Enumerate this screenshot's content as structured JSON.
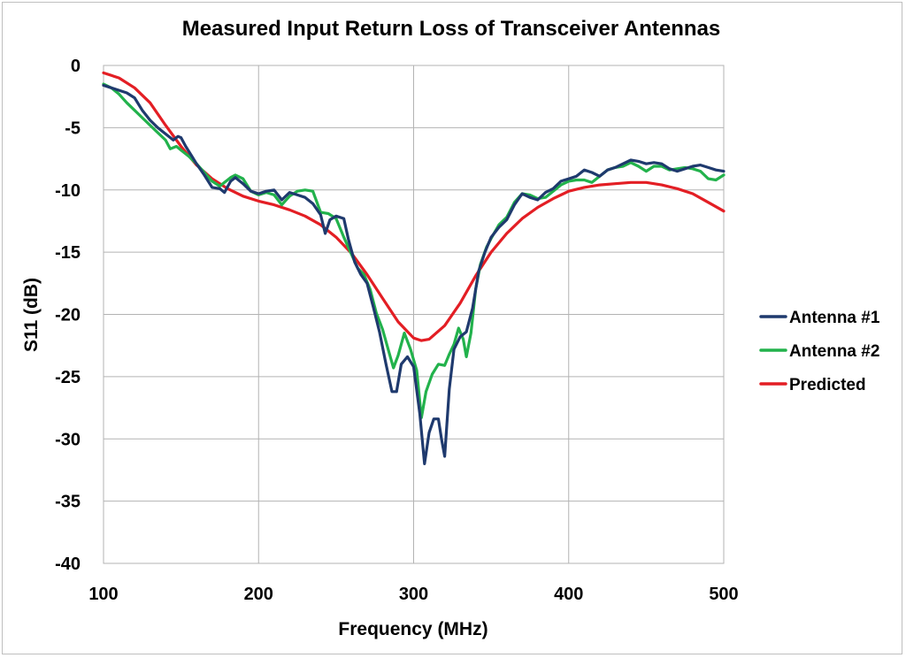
{
  "chart_data": {
    "type": "line",
    "title": "Measured Input Return Loss of Transceiver Antennas",
    "xlabel": "Frequency (MHz)",
    "ylabel": "S11 (dB)",
    "xlim": [
      100,
      500
    ],
    "ylim": [
      -40,
      0
    ],
    "x_ticks": [
      100,
      200,
      300,
      400,
      500
    ],
    "y_ticks": [
      0,
      -5,
      -10,
      -15,
      -20,
      -25,
      -30,
      -35,
      -40
    ],
    "grid": true,
    "legend_position": "right",
    "series": [
      {
        "name": "Antenna #1",
        "color": "#1f3a6e",
        "points": [
          [
            100,
            -1.6
          ],
          [
            105,
            -1.8
          ],
          [
            110,
            -2.0
          ],
          [
            115,
            -2.2
          ],
          [
            120,
            -2.6
          ],
          [
            125,
            -3.6
          ],
          [
            130,
            -4.4
          ],
          [
            135,
            -5.0
          ],
          [
            140,
            -5.5
          ],
          [
            145,
            -6.0
          ],
          [
            148,
            -5.7
          ],
          [
            150,
            -5.8
          ],
          [
            153,
            -6.5
          ],
          [
            157,
            -7.3
          ],
          [
            160,
            -7.9
          ],
          [
            165,
            -8.8
          ],
          [
            170,
            -9.8
          ],
          [
            175,
            -9.9
          ],
          [
            178,
            -10.2
          ],
          [
            182,
            -9.3
          ],
          [
            185,
            -9.0
          ],
          [
            190,
            -9.5
          ],
          [
            195,
            -10.1
          ],
          [
            200,
            -10.3
          ],
          [
            205,
            -10.1
          ],
          [
            210,
            -10.0
          ],
          [
            215,
            -10.8
          ],
          [
            220,
            -10.2
          ],
          [
            225,
            -10.4
          ],
          [
            230,
            -10.6
          ],
          [
            235,
            -11.1
          ],
          [
            240,
            -12.0
          ],
          [
            243,
            -13.5
          ],
          [
            246,
            -12.4
          ],
          [
            250,
            -12.1
          ],
          [
            255,
            -12.3
          ],
          [
            258,
            -14.0
          ],
          [
            262,
            -15.8
          ],
          [
            266,
            -16.8
          ],
          [
            270,
            -17.5
          ],
          [
            274,
            -19.4
          ],
          [
            278,
            -21.4
          ],
          [
            282,
            -23.9
          ],
          [
            286,
            -26.2
          ],
          [
            289,
            -26.2
          ],
          [
            292,
            -24.0
          ],
          [
            296,
            -23.4
          ],
          [
            300,
            -24.2
          ],
          [
            304,
            -28.0
          ],
          [
            307,
            -32.0
          ],
          [
            310,
            -29.5
          ],
          [
            313,
            -28.4
          ],
          [
            316,
            -28.4
          ],
          [
            318,
            -30.0
          ],
          [
            320,
            -31.4
          ],
          [
            323,
            -26.0
          ],
          [
            326,
            -22.8
          ],
          [
            330,
            -21.8
          ],
          [
            334,
            -21.4
          ],
          [
            338,
            -19.5
          ],
          [
            342,
            -16.5
          ],
          [
            346,
            -15.0
          ],
          [
            350,
            -13.8
          ],
          [
            355,
            -13.0
          ],
          [
            360,
            -12.4
          ],
          [
            365,
            -11.2
          ],
          [
            370,
            -10.3
          ],
          [
            375,
            -10.6
          ],
          [
            380,
            -10.8
          ],
          [
            385,
            -10.2
          ],
          [
            390,
            -9.9
          ],
          [
            395,
            -9.3
          ],
          [
            400,
            -9.1
          ],
          [
            405,
            -8.9
          ],
          [
            410,
            -8.4
          ],
          [
            415,
            -8.6
          ],
          [
            420,
            -8.9
          ],
          [
            425,
            -8.4
          ],
          [
            430,
            -8.2
          ],
          [
            435,
            -7.9
          ],
          [
            440,
            -7.6
          ],
          [
            445,
            -7.7
          ],
          [
            450,
            -7.9
          ],
          [
            455,
            -7.8
          ],
          [
            460,
            -7.9
          ],
          [
            465,
            -8.3
          ],
          [
            470,
            -8.5
          ],
          [
            475,
            -8.3
          ],
          [
            480,
            -8.1
          ],
          [
            485,
            -8.0
          ],
          [
            490,
            -8.2
          ],
          [
            495,
            -8.4
          ],
          [
            500,
            -8.5
          ]
        ]
      },
      {
        "name": "Antenna #2",
        "color": "#22b24c",
        "points": [
          [
            100,
            -1.5
          ],
          [
            105,
            -1.8
          ],
          [
            110,
            -2.3
          ],
          [
            115,
            -3.0
          ],
          [
            120,
            -3.6
          ],
          [
            125,
            -4.2
          ],
          [
            130,
            -4.8
          ],
          [
            135,
            -5.4
          ],
          [
            140,
            -6.0
          ],
          [
            143,
            -6.7
          ],
          [
            147,
            -6.5
          ],
          [
            150,
            -6.8
          ],
          [
            155,
            -7.3
          ],
          [
            160,
            -7.9
          ],
          [
            165,
            -8.6
          ],
          [
            170,
            -9.3
          ],
          [
            175,
            -9.7
          ],
          [
            178,
            -9.4
          ],
          [
            182,
            -9.0
          ],
          [
            185,
            -8.8
          ],
          [
            190,
            -9.1
          ],
          [
            195,
            -10.1
          ],
          [
            200,
            -10.4
          ],
          [
            205,
            -10.2
          ],
          [
            210,
            -10.4
          ],
          [
            215,
            -11.2
          ],
          [
            220,
            -10.5
          ],
          [
            225,
            -10.1
          ],
          [
            230,
            -10.0
          ],
          [
            235,
            -10.1
          ],
          [
            240,
            -11.8
          ],
          [
            245,
            -11.9
          ],
          [
            250,
            -12.3
          ],
          [
            255,
            -13.8
          ],
          [
            260,
            -15.2
          ],
          [
            264,
            -16.3
          ],
          [
            268,
            -16.8
          ],
          [
            272,
            -18.0
          ],
          [
            276,
            -19.9
          ],
          [
            280,
            -21.2
          ],
          [
            284,
            -23.0
          ],
          [
            287,
            -24.3
          ],
          [
            290,
            -23.3
          ],
          [
            294,
            -21.5
          ],
          [
            298,
            -22.8
          ],
          [
            302,
            -24.5
          ],
          [
            305,
            -28.3
          ],
          [
            308,
            -26.2
          ],
          [
            312,
            -24.8
          ],
          [
            316,
            -24.0
          ],
          [
            320,
            -24.1
          ],
          [
            323,
            -23.2
          ],
          [
            326,
            -22.4
          ],
          [
            329,
            -21.1
          ],
          [
            332,
            -22.0
          ],
          [
            334,
            -23.4
          ],
          [
            337,
            -21.5
          ],
          [
            340,
            -18.0
          ],
          [
            343,
            -16.0
          ],
          [
            347,
            -14.6
          ],
          [
            350,
            -13.9
          ],
          [
            355,
            -12.8
          ],
          [
            360,
            -12.2
          ],
          [
            365,
            -11.0
          ],
          [
            370,
            -10.3
          ],
          [
            375,
            -10.4
          ],
          [
            380,
            -10.7
          ],
          [
            385,
            -10.6
          ],
          [
            390,
            -10.1
          ],
          [
            395,
            -9.6
          ],
          [
            400,
            -9.3
          ],
          [
            405,
            -9.2
          ],
          [
            410,
            -9.2
          ],
          [
            415,
            -9.4
          ],
          [
            420,
            -8.9
          ],
          [
            425,
            -8.4
          ],
          [
            430,
            -8.2
          ],
          [
            435,
            -8.1
          ],
          [
            440,
            -7.8
          ],
          [
            445,
            -8.1
          ],
          [
            450,
            -8.5
          ],
          [
            455,
            -8.1
          ],
          [
            460,
            -8.1
          ],
          [
            465,
            -8.4
          ],
          [
            470,
            -8.3
          ],
          [
            475,
            -8.2
          ],
          [
            480,
            -8.3
          ],
          [
            485,
            -8.5
          ],
          [
            490,
            -9.1
          ],
          [
            495,
            -9.2
          ],
          [
            500,
            -8.8
          ]
        ]
      },
      {
        "name": "Predicted",
        "color": "#e31e24",
        "points": [
          [
            100,
            -0.6
          ],
          [
            110,
            -1.0
          ],
          [
            120,
            -1.8
          ],
          [
            130,
            -3.0
          ],
          [
            140,
            -4.8
          ],
          [
            150,
            -6.5
          ],
          [
            160,
            -8.0
          ],
          [
            170,
            -9.1
          ],
          [
            180,
            -9.9
          ],
          [
            190,
            -10.5
          ],
          [
            200,
            -10.9
          ],
          [
            210,
            -11.2
          ],
          [
            220,
            -11.6
          ],
          [
            230,
            -12.1
          ],
          [
            240,
            -12.8
          ],
          [
            250,
            -13.8
          ],
          [
            260,
            -15.1
          ],
          [
            270,
            -16.8
          ],
          [
            280,
            -18.7
          ],
          [
            290,
            -20.6
          ],
          [
            300,
            -21.9
          ],
          [
            305,
            -22.1
          ],
          [
            310,
            -22.0
          ],
          [
            320,
            -20.9
          ],
          [
            330,
            -19.1
          ],
          [
            340,
            -16.9
          ],
          [
            350,
            -15.0
          ],
          [
            360,
            -13.5
          ],
          [
            370,
            -12.3
          ],
          [
            380,
            -11.4
          ],
          [
            390,
            -10.7
          ],
          [
            400,
            -10.1
          ],
          [
            410,
            -9.8
          ],
          [
            420,
            -9.6
          ],
          [
            430,
            -9.5
          ],
          [
            440,
            -9.4
          ],
          [
            450,
            -9.4
          ],
          [
            460,
            -9.6
          ],
          [
            470,
            -9.9
          ],
          [
            480,
            -10.3
          ],
          [
            490,
            -11.0
          ],
          [
            500,
            -11.7
          ]
        ]
      }
    ]
  }
}
